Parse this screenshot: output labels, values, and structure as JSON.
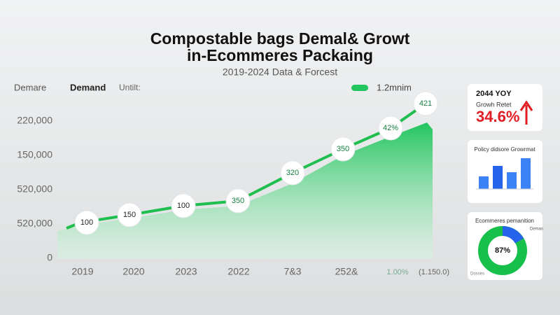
{
  "header": {
    "title": [
      "Compostable bags Demal& Growt",
      "in-Ecommeres Packaing"
    ],
    "subtitle": "2019-2024 Data & Forcest"
  },
  "legend": {
    "left": "Demare",
    "series": "Demand",
    "unit": "Untilt:",
    "right": "1.2mnim"
  },
  "y_axis": [
    "220,000",
    "150,000",
    "520,000",
    "520,000",
    "0"
  ],
  "x_axis": [
    "2019",
    "2020",
    "2023",
    "2022",
    "7&3",
    "252&",
    "1.00%",
    "(1.150.0)"
  ],
  "points": [
    "100",
    "150",
    "100",
    "350",
    "320",
    "350",
    "42%",
    "421"
  ],
  "cards": [
    {
      "title": "2044 YOY",
      "subtitle": "Growh Retet",
      "value": "34.6%"
    },
    {
      "title": "Policy didsore Growrmat"
    },
    {
      "title": "Ecommeres pemanition",
      "value": "87%",
      "legend": "Demas",
      "footer": "Dosses"
    }
  ]
}
